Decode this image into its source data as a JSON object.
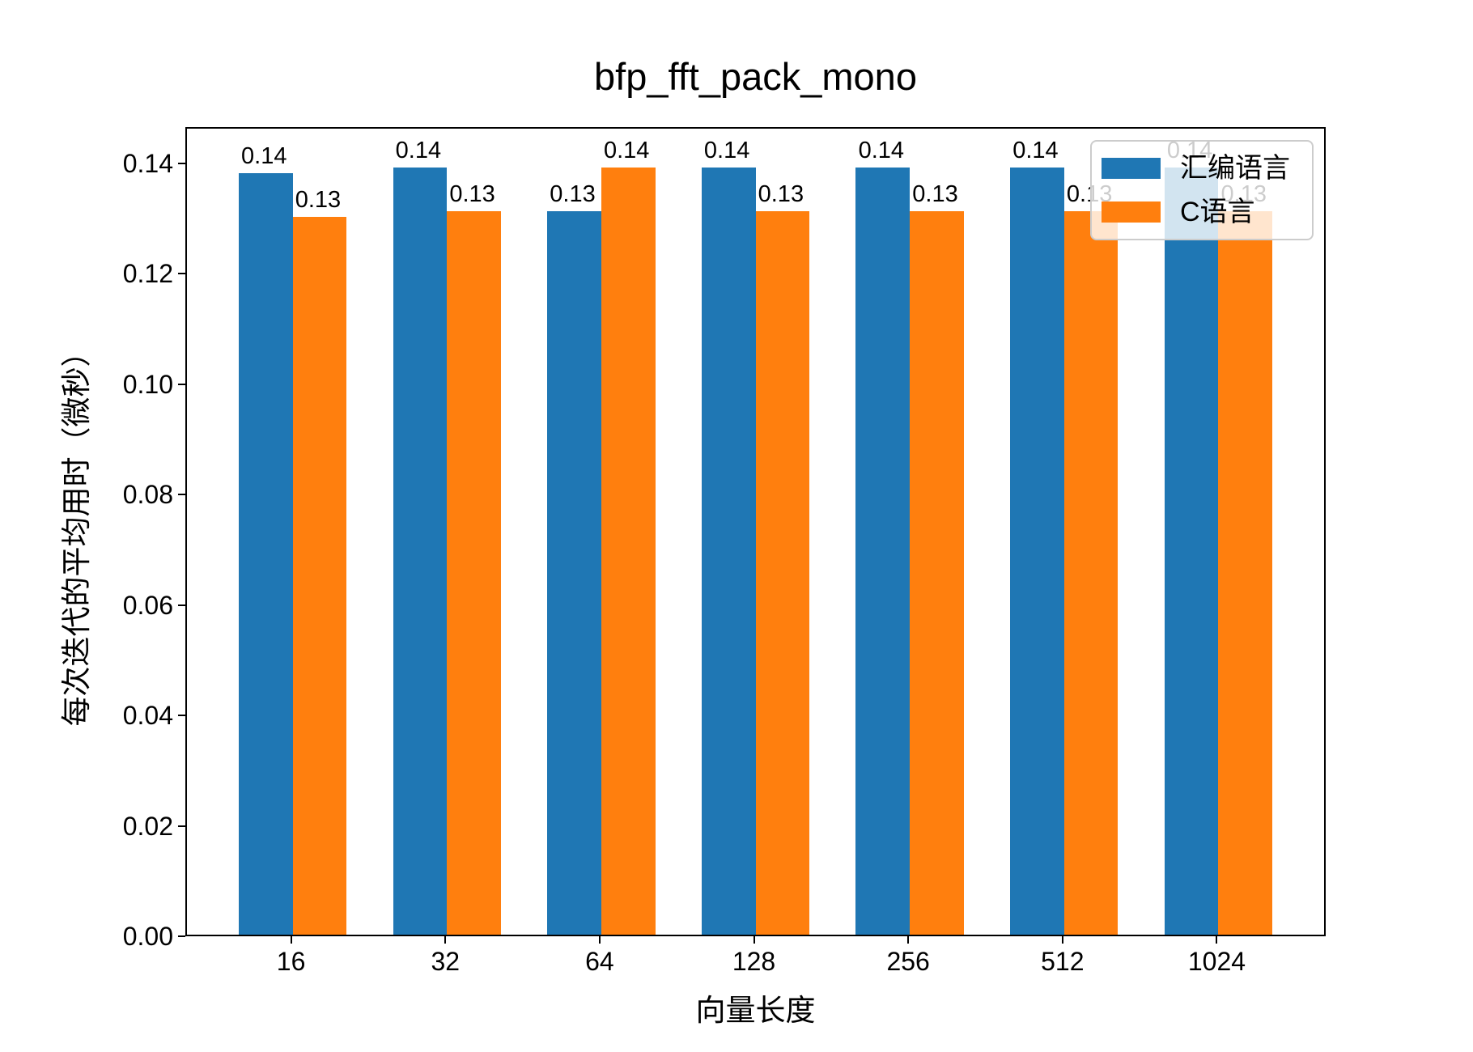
{
  "chart_data": {
    "type": "bar",
    "title": "bfp_fft_pack_mono",
    "xlabel": "向量长度",
    "ylabel": "每次迭代的平均用时（微秒）",
    "categories": [
      "16",
      "32",
      "64",
      "128",
      "256",
      "512",
      "1024"
    ],
    "series": [
      {
        "name": "汇编语言",
        "key": "assembly",
        "color": "#1f77b4",
        "values": [
          0.138,
          0.139,
          0.131,
          0.139,
          0.139,
          0.139,
          0.139
        ],
        "bar_labels": [
          "0.14",
          "0.14",
          "0.13",
          "0.14",
          "0.14",
          "0.14",
          "0.14"
        ]
      },
      {
        "name": "C语言",
        "key": "c-language",
        "color": "#ff7f0e",
        "values": [
          0.13,
          0.131,
          0.139,
          0.131,
          0.131,
          0.131,
          0.131
        ],
        "bar_labels": [
          "0.13",
          "0.13",
          "0.14",
          "0.13",
          "0.13",
          "0.13",
          "0.13"
        ]
      }
    ],
    "ylim": [
      0,
      0.1466
    ],
    "yticks": [
      "0.00",
      "0.02",
      "0.04",
      "0.06",
      "0.08",
      "0.10",
      "0.12",
      "0.14"
    ],
    "ytick_values": [
      0,
      0.02,
      0.04,
      0.06,
      0.08,
      0.1,
      0.12,
      0.14
    ],
    "legend_position": "upper right",
    "grid": false,
    "axis_color": "#000000",
    "legend_border_color": "#cccccc",
    "legend_background_alpha": 0.8
  }
}
